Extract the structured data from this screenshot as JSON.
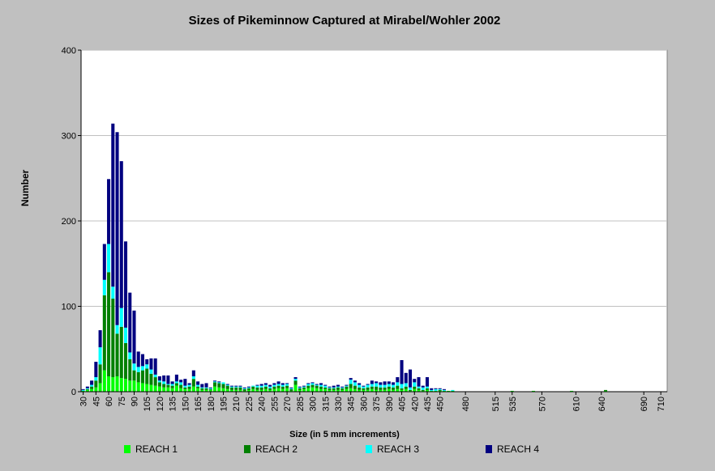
{
  "chart_data": {
    "type": "bar",
    "stacked": true,
    "title": "Sizes of Pikeminnow Captured at Mirabel/Wohler 2002",
    "xlabel": "Size (in 5 mm increments)",
    "ylabel": "Number",
    "ylim": [
      0,
      400
    ],
    "yticks": [
      0,
      100,
      200,
      300,
      400
    ],
    "grid": true,
    "legend_position": "bottom",
    "x": [
      30,
      35,
      40,
      45,
      50,
      55,
      60,
      65,
      70,
      75,
      80,
      85,
      90,
      95,
      100,
      105,
      110,
      115,
      120,
      125,
      130,
      135,
      140,
      145,
      150,
      155,
      160,
      165,
      170,
      175,
      180,
      185,
      190,
      195,
      200,
      205,
      210,
      215,
      220,
      225,
      230,
      235,
      240,
      245,
      250,
      255,
      260,
      265,
      270,
      275,
      280,
      285,
      290,
      295,
      300,
      305,
      310,
      315,
      320,
      325,
      330,
      335,
      340,
      345,
      350,
      355,
      360,
      365,
      370,
      375,
      380,
      385,
      390,
      395,
      400,
      405,
      410,
      415,
      420,
      425,
      430,
      435,
      440,
      445,
      450,
      455,
      460,
      465,
      470,
      475,
      480,
      485,
      490,
      495,
      500,
      505,
      510,
      515,
      520,
      525,
      530,
      535,
      540,
      545,
      550,
      555,
      560,
      565,
      570,
      575,
      580,
      585,
      590,
      595,
      600,
      605,
      610,
      615,
      620,
      625,
      630,
      635,
      640,
      645,
      650,
      655,
      660,
      665,
      670,
      675,
      680,
      685,
      690,
      695,
      700,
      705,
      710,
      715
    ],
    "xtick_labels": [
      "30",
      "45",
      "60",
      "75",
      "90",
      "105",
      "120",
      "135",
      "150",
      "165",
      "180",
      "195",
      "210",
      "225",
      "240",
      "255",
      "270",
      "285",
      "300",
      "315",
      "330",
      "345",
      "360",
      "375",
      "390",
      "405",
      "420",
      "435",
      "450",
      "480",
      "515",
      "535",
      "570",
      "610",
      "640",
      "690",
      "710"
    ],
    "series": [
      {
        "name": "REACH 1",
        "color": "#00ff00",
        "values": [
          1,
          2,
          3,
          5,
          10,
          25,
          18,
          17,
          18,
          16,
          15,
          13,
          13,
          11,
          10,
          9,
          8,
          7,
          6,
          5,
          5,
          4,
          7,
          4,
          3,
          3,
          6,
          4,
          2,
          2,
          2,
          6,
          5,
          4,
          3,
          2,
          2,
          2,
          1,
          2,
          3,
          2,
          2,
          3,
          2,
          3,
          4,
          3,
          4,
          1,
          8,
          2,
          3,
          4,
          5,
          4,
          3,
          3,
          2,
          2,
          2,
          2,
          3,
          4,
          3,
          2,
          2,
          2,
          3,
          2,
          2,
          2,
          3,
          2,
          3,
          2,
          3,
          1,
          3,
          2,
          1,
          2,
          1,
          1,
          1,
          1,
          1,
          1,
          0,
          0,
          0,
          0,
          0,
          0,
          0,
          0,
          0,
          0,
          0,
          0,
          0,
          1,
          0,
          0,
          0,
          0,
          1,
          0,
          0,
          0,
          0,
          0,
          0,
          0,
          0,
          1,
          0,
          0,
          0,
          0,
          0,
          0,
          0,
          1,
          0,
          0,
          0,
          0,
          0,
          0,
          0,
          0,
          0,
          0,
          0,
          0,
          0,
          0
        ]
      },
      {
        "name": "REACH 2",
        "color": "#008000",
        "values": [
          0,
          1,
          3,
          8,
          22,
          88,
          122,
          92,
          50,
          60,
          42,
          25,
          12,
          12,
          15,
          18,
          13,
          10,
          5,
          4,
          3,
          3,
          3,
          4,
          2,
          3,
          9,
          2,
          2,
          2,
          1,
          5,
          5,
          5,
          4,
          3,
          3,
          3,
          2,
          2,
          3,
          3,
          3,
          3,
          2,
          3,
          3,
          3,
          3,
          2,
          5,
          2,
          2,
          3,
          3,
          3,
          3,
          2,
          2,
          2,
          3,
          2,
          3,
          5,
          4,
          3,
          2,
          3,
          3,
          4,
          3,
          3,
          3,
          3,
          4,
          2,
          3,
          1,
          3,
          2,
          1,
          2,
          0,
          0,
          1,
          0,
          0,
          0,
          0,
          0,
          0,
          0,
          0,
          0,
          0,
          0,
          0,
          0,
          0,
          0,
          0,
          0,
          0,
          0,
          0,
          0,
          0,
          0,
          0,
          0,
          0,
          0,
          0,
          0,
          0,
          0,
          0,
          0,
          0,
          0,
          0,
          0,
          0,
          1,
          0,
          0,
          0,
          0,
          0,
          0,
          0,
          0,
          0,
          0,
          0,
          0,
          0,
          0
        ]
      },
      {
        "name": "REACH 3",
        "color": "#00ffff",
        "values": [
          1,
          1,
          2,
          4,
          20,
          18,
          33,
          14,
          10,
          22,
          18,
          8,
          8,
          6,
          5,
          5,
          5,
          3,
          2,
          3,
          1,
          2,
          2,
          3,
          2,
          2,
          3,
          2,
          1,
          1,
          1,
          1,
          1,
          2,
          1,
          1,
          1,
          1,
          1,
          1,
          1,
          2,
          2,
          2,
          2,
          2,
          2,
          2,
          2,
          1,
          2,
          1,
          1,
          2,
          2,
          1,
          2,
          2,
          1,
          1,
          1,
          1,
          1,
          5,
          4,
          3,
          2,
          3,
          3,
          4,
          3,
          3,
          3,
          3,
          4,
          5,
          4,
          3,
          5,
          2,
          3,
          2,
          1,
          2,
          1,
          1,
          0,
          1,
          0,
          0,
          0,
          0,
          0,
          0,
          0,
          0,
          0,
          0,
          0,
          0,
          0,
          0,
          0,
          0,
          0,
          0,
          0,
          0,
          0,
          0,
          0,
          0,
          0,
          0,
          0,
          0,
          0,
          0,
          0,
          0,
          0,
          0,
          0,
          0,
          0,
          0,
          0,
          0,
          0,
          0,
          0,
          0,
          0,
          0,
          0,
          0,
          0,
          0
        ]
      },
      {
        "name": "REACH 4",
        "color": "#000080",
        "values": [
          1,
          2,
          5,
          18,
          20,
          42,
          76,
          191,
          226,
          172,
          101,
          70,
          62,
          18,
          14,
          6,
          13,
          19,
          5,
          7,
          10,
          3,
          8,
          3,
          8,
          2,
          7,
          4,
          4,
          5,
          1,
          1,
          1,
          0,
          1,
          1,
          1,
          1,
          1,
          1,
          0,
          1,
          2,
          2,
          2,
          2,
          3,
          2,
          1,
          1,
          2,
          1,
          1,
          1,
          1,
          1,
          2,
          1,
          1,
          2,
          2,
          1,
          1,
          2,
          2,
          2,
          1,
          1,
          4,
          2,
          3,
          4,
          3,
          3,
          6,
          28,
          12,
          21,
          4,
          11,
          2,
          11,
          2,
          1,
          1,
          1,
          0,
          0,
          0,
          0,
          0,
          0,
          0,
          0,
          0,
          0,
          0,
          0,
          0,
          0,
          0,
          0,
          0,
          0,
          0,
          0,
          0,
          0,
          0,
          0,
          0,
          0,
          0,
          0,
          0,
          0,
          0,
          0,
          0,
          0,
          0,
          0,
          0,
          0,
          0,
          0,
          0,
          0,
          0,
          0,
          0,
          0,
          0,
          0,
          0,
          0,
          0,
          0
        ]
      }
    ]
  }
}
